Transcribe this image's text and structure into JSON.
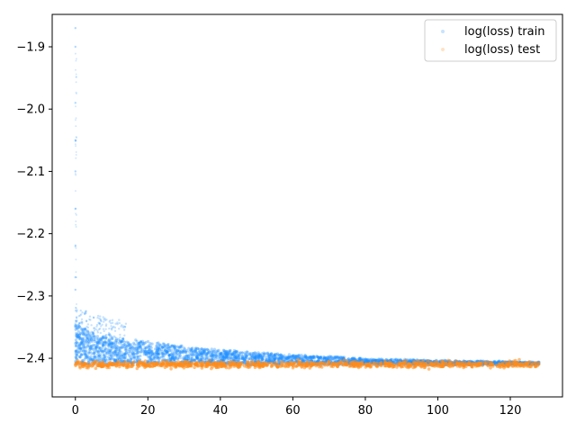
{
  "chart_data": {
    "type": "scatter",
    "title": "",
    "xlabel": "",
    "ylabel": "",
    "xlim": [
      -6.4,
      134.4
    ],
    "ylim": [
      -2.462,
      -1.848
    ],
    "x_ticks": [
      0,
      20,
      40,
      60,
      80,
      100,
      120
    ],
    "y_ticks": [
      -2.4,
      -2.3,
      -2.2,
      -2.1,
      -2.0,
      -1.9
    ],
    "x_tick_labels": [
      "0",
      "20",
      "40",
      "60",
      "80",
      "100",
      "120"
    ],
    "y_tick_labels": [
      "−2.4",
      "−2.3",
      "−2.2",
      "−2.1",
      "−2.0",
      "−1.9"
    ],
    "legend_position": "top-right",
    "grid": false,
    "series": [
      {
        "name": "log(loss) train",
        "color": "#1f8fff",
        "x_range": [
          0,
          128
        ],
        "baseline": -2.41,
        "band_upper": [
          {
            "x": 0,
            "y": -2.345
          },
          {
            "x": 5,
            "y": -2.36
          },
          {
            "x": 10,
            "y": -2.366
          },
          {
            "x": 20,
            "y": -2.374
          },
          {
            "x": 40,
            "y": -2.387
          },
          {
            "x": 60,
            "y": -2.395
          },
          {
            "x": 80,
            "y": -2.401
          },
          {
            "x": 100,
            "y": -2.404
          },
          {
            "x": 120,
            "y": -2.406
          },
          {
            "x": 128,
            "y": -2.407
          }
        ],
        "outliers_near_zero": [
          {
            "x": 0,
            "y": -1.87
          },
          {
            "x": 0,
            "y": -1.9
          },
          {
            "x": 0,
            "y": -1.99
          },
          {
            "x": 0,
            "y": -2.05
          },
          {
            "x": 0,
            "y": -2.1
          },
          {
            "x": 0,
            "y": -2.16
          },
          {
            "x": 0,
            "y": -2.22
          },
          {
            "x": 0,
            "y": -2.27
          },
          {
            "x": 0,
            "y": -2.29
          }
        ]
      },
      {
        "name": "log(loss) test",
        "color": "#ff8c1a",
        "x_range": [
          0,
          128
        ],
        "baseline": -2.41,
        "spread": 0.004
      }
    ]
  }
}
